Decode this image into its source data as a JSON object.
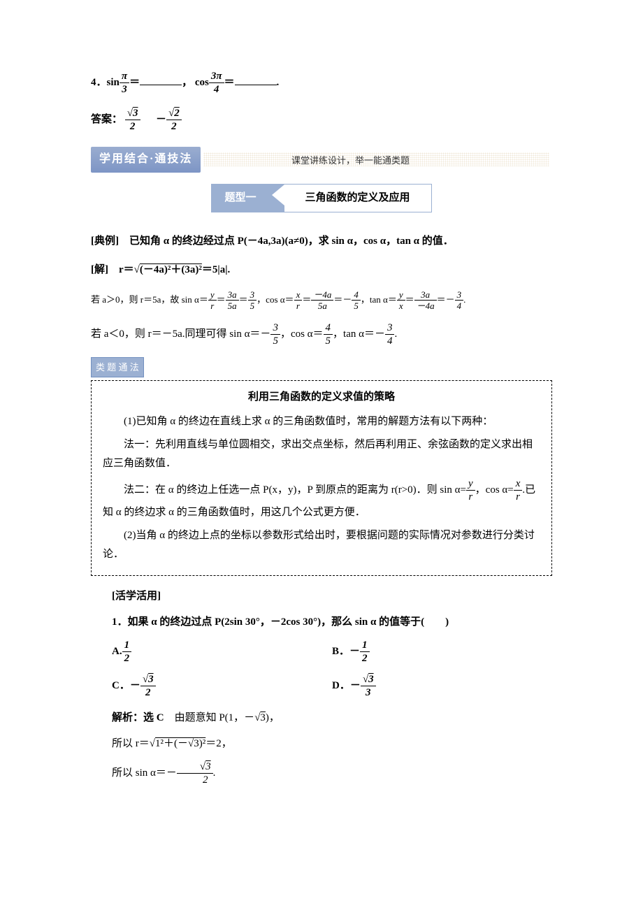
{
  "q4": {
    "prefix": "4．sin",
    "frac1_num": "π",
    "frac1_den": "3",
    "mid": "＝",
    "comma": "， cos",
    "frac2_num": "3π",
    "frac2_den": "4",
    "eq2": "＝",
    "period": "."
  },
  "ans": {
    "label": "答案：",
    "frac1_num": "3",
    "frac1_den": "2",
    "gap": "　",
    "minus": "－",
    "frac2_num": "2",
    "frac2_den": "2"
  },
  "banner": {
    "left": "学用结合·通技法",
    "text": "课堂讲练设计，举一能通类题"
  },
  "titlebox": {
    "left": "题型一",
    "right": "三角函数的定义及应用"
  },
  "example": {
    "label": "[典例]",
    "text": "　已知角 α 的终边经过点 P(－4a,3a)(a≠0)，求 sin α，cos α，tan α 的值．"
  },
  "sol": {
    "label": "[解]",
    "text_pre": "　r＝",
    "sqrt_inner": "(－4a)²＋(3a)²",
    "text_post": "＝5|a|."
  },
  "case1": {
    "pre": "若 a＞0，则 r＝5a，故 sin α＝",
    "f1n": "y",
    "f1d": "r",
    "eq1": "＝",
    "f2n": "3a",
    "f2d": "5a",
    "eq2": "＝",
    "f3n": "3",
    "f3d": "5",
    "mid1": "，cos α＝",
    "f4n": "x",
    "f4d": "r",
    "eq3": "＝",
    "f5n": "－4a",
    "f5d": "5a",
    "eq4": "＝－",
    "f6n": "4",
    "f6d": "5",
    "mid2": "，tan α＝",
    "f7n": "y",
    "f7d": "x",
    "eq5": "＝",
    "f8n": "3a",
    "f8d": "－4a",
    "eq6": "＝－",
    "f9n": "3",
    "f9d": "4",
    "end": "."
  },
  "case2": {
    "pre": "若 a＜0，则 r＝－5a.同理可得 sin α＝－",
    "f1n": "3",
    "f1d": "5",
    "mid1": "，cos α＝",
    "f2n": "4",
    "f2d": "5",
    "mid2": "，tan α＝－",
    "f3n": "3",
    "f3d": "4",
    "end": "."
  },
  "method_badge": "类 题 通 法",
  "strategy": {
    "title": "利用三角函数的定义求值的策略",
    "p1": "(1)已知角 α 的终边在直线上求 α 的三角函数值时，常用的解题方法有以下两种：",
    "p2": "法一：先利用直线与单位圆相交，求出交点坐标，然后再利用正、余弦函数的定义求出相应三角函数值．",
    "p3_pre": "法二：在 α 的终边上任选一点 P(x，y)，P 到原点的距离为 r(r>0)．则 sin α=",
    "p3_f1n": "y",
    "p3_f1d": "r",
    "p3_mid": "，cos α=",
    "p3_f2n": "x",
    "p3_f2d": "r",
    "p3_post": ".已知 α 的终边求 α 的三角函数值时，用这几个公式更方便．",
    "p4": "(2)当角 α 的终边上点的坐标以参数形式给出时，要根据问题的实际情况对参数进行分类讨论．"
  },
  "activity": "[活学活用]",
  "q1": "1．如果 α 的终边过点 P(2sin 30°，－2cos 30°)，那么 sin α 的值等于(　　)",
  "options": {
    "a_pre": "A.",
    "a_num": "1",
    "a_den": "2",
    "b_pre": "B．－",
    "b_num": "1",
    "b_den": "2",
    "c_pre": "C．－",
    "c_num": "3",
    "c_den": "2",
    "d_pre": "D．－",
    "d_num": "3",
    "d_den": "3"
  },
  "explain1": {
    "bold": "解析：选 C",
    "text_pre": "　由题意知 P(1，－",
    "sqrt": "3",
    "text_post": ")，"
  },
  "explain2": {
    "pre": "所以 r＝",
    "sqrt_inner_pre": "1²＋(－",
    "sqrt_inner_sqrt": "3",
    "sqrt_inner_post": ")²",
    "post": "＝2，"
  },
  "explain3": {
    "pre": "所以 sin α＝－",
    "num": "3",
    "den": "2",
    "post": "."
  },
  "colors": {
    "banner_bg": "#9bb0d2",
    "box_border": "#9bb0d2"
  }
}
